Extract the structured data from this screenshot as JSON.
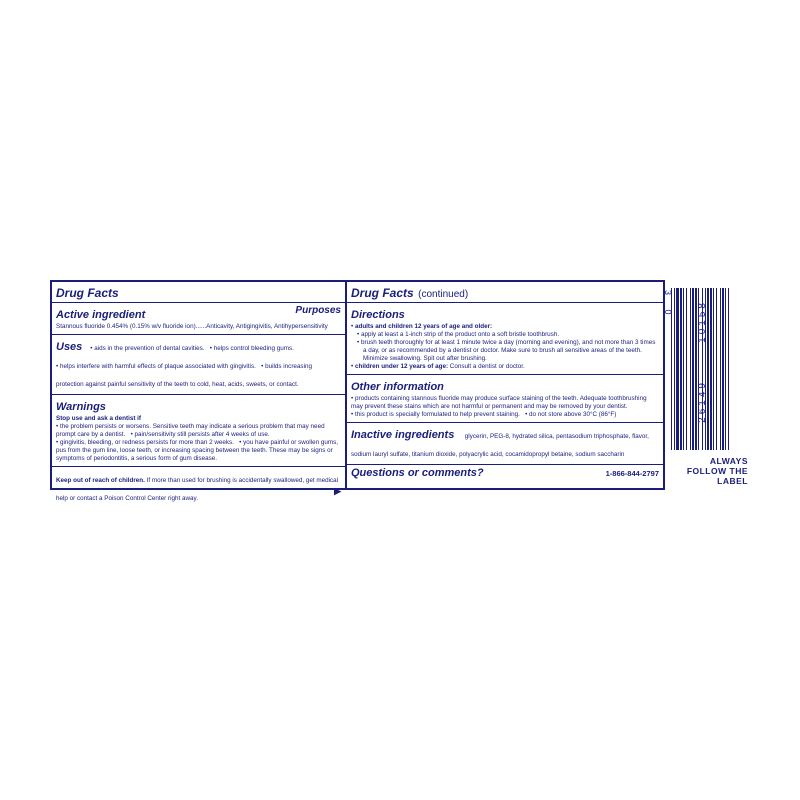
{
  "colors": {
    "primary": "#1a1e7a",
    "bg": "#ffffff"
  },
  "left": {
    "drugFacts": "Drug Facts",
    "activeIngredient": {
      "heading": "Active ingredient",
      "purposesLabel": "Purposes",
      "line": "Stannous fluoride 0.454% (0.15% w/v fluoride ion)......Anticavity, Antigingivitis, Antihypersensitivity"
    },
    "uses": {
      "heading": "Uses",
      "items": [
        "aids in the prevention of dental cavities.",
        "helps control bleeding gums.",
        "helps interfere with harmful effects of plaque associated with gingivitis.",
        "builds increasing protection against painful sensitivity of the teeth to cold, heat, acids, sweets, or contact."
      ]
    },
    "warnings": {
      "heading": "Warnings",
      "stopUse": "Stop use and ask a dentist if",
      "items": [
        "the problem persists or worsens. Sensitive teeth may indicate a serious problem that may need prompt care by a dentist.",
        "pain/sensitivity still persists after 4 weeks of use.",
        "gingivitis, bleeding, or redness persists for more than 2 weeks.",
        "you have painful or swollen gums, pus from the gum line, loose teeth, or increasing spacing between the teeth. These may be signs or symptoms of periodontitis, a serious form of gum disease."
      ],
      "keepOutBold": "Keep out of reach of children.",
      "keepOutRest": " If more than used for brushing is accidentally swallowed, get medical help or contact a Poison Control Center right away."
    }
  },
  "right": {
    "drugFactsCont": "Drug Facts",
    "contLabel": "(continued)",
    "directions": {
      "heading": "Directions",
      "adultsBold": "adults and children 12 years of age and older:",
      "adultItems": [
        "apply at least a 1-inch strip of the product onto a soft bristle toothbrush.",
        "brush teeth thoroughly for at least 1 minute twice a day (morning and evening), and not more than 3 times a day, or as recommended by a dentist or doctor. Make sure to brush all sensitive areas of the teeth. Minimize swallowing. Spit out after brushing."
      ],
      "childrenBold": "children under 12 years of age:",
      "childrenText": " Consult a dentist or doctor."
    },
    "otherInfo": {
      "heading": "Other information",
      "items": [
        "products containing stannous fluoride may produce surface staining of the teeth. Adequate toothbrushing may prevent these stains which are not harmful or permanent and may be removed by your dentist.",
        "this product is specially formulated to help prevent staining.",
        "do not store above 30°C (86°F)"
      ]
    },
    "inactive": {
      "heading": "Inactive ingredients",
      "text": "glycerin, PEG-8, hydrated silica, pentasodium triphosphate, flavor, sodium lauryl sulfate, titanium dioxide, polyacrylic acid, cocamidopropyl betaine, sodium saccharin"
    },
    "questions": {
      "heading": "Questions or comments?",
      "phone": "1-866-844-2797"
    }
  },
  "barcode": {
    "leftDigits": "3   0",
    "group1": "10158",
    "group2": "26149",
    "followLabel": "ALWAYS FOLLOW THE LABEL",
    "bars": [
      1,
      2,
      1,
      1,
      3,
      1,
      2,
      1,
      1,
      2,
      1,
      3,
      1,
      1,
      2,
      1,
      2,
      1,
      1,
      3,
      1,
      2,
      1,
      1,
      2,
      1,
      2,
      1,
      1,
      2,
      1,
      3,
      1,
      1,
      2,
      1,
      1,
      2,
      1,
      2
    ]
  }
}
